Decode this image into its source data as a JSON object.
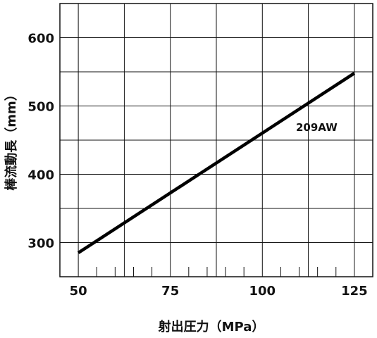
{
  "chart_data": {
    "type": "line",
    "title": "",
    "xlabel": "射出圧力（MPa）",
    "ylabel": "棒流動長（mm）",
    "xlim": [
      45,
      130
    ],
    "ylim": [
      250,
      650
    ],
    "x_ticks": [
      50,
      75,
      100,
      125
    ],
    "x_tick_labels": [
      "50",
      "75",
      "100",
      "125"
    ],
    "x_minor_ticks": [
      55,
      60,
      65,
      70,
      80,
      85,
      90,
      95,
      105,
      110,
      115,
      120
    ],
    "y_ticks": [
      300,
      400,
      500,
      600
    ],
    "y_tick_labels": [
      "300",
      "400",
      "500",
      "600"
    ],
    "grid_x": [
      50,
      62.5,
      75,
      87.5,
      100,
      112.5,
      125
    ],
    "grid_y": [
      300,
      350,
      400,
      450,
      500,
      550,
      600,
      650
    ],
    "grid": true,
    "series": [
      {
        "name": "209AW",
        "x": [
          50,
          125
        ],
        "y": [
          285,
          548
        ],
        "color": "#000000"
      }
    ]
  }
}
